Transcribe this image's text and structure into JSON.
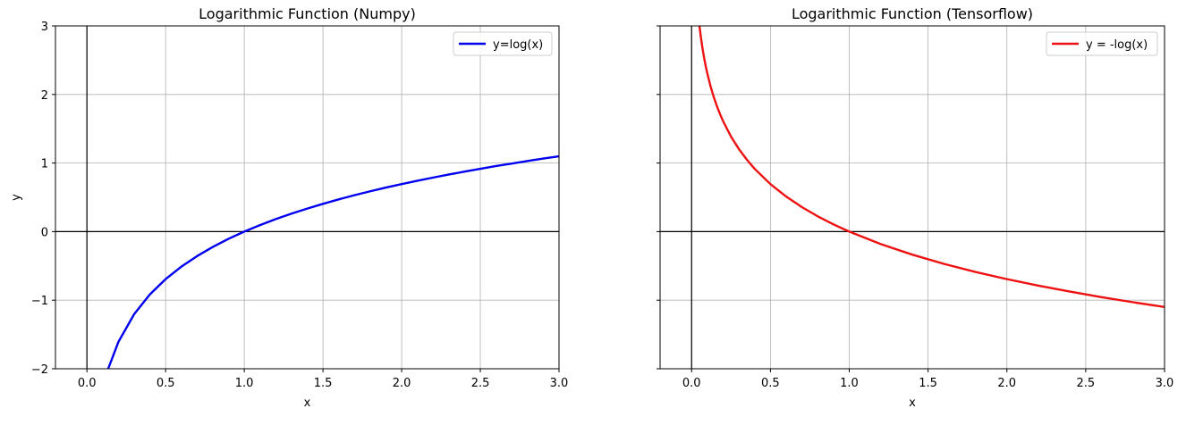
{
  "chart_data": [
    {
      "type": "line",
      "title": "Logarithmic Function (Numpy)",
      "xlabel": "x",
      "ylabel": "y",
      "xlim": [
        -0.2,
        3.0
      ],
      "ylim": [
        -2,
        3
      ],
      "xticks": [
        "0.0",
        "0.5",
        "1.0",
        "1.5",
        "2.0",
        "2.5",
        "3.0"
      ],
      "xtick_values": [
        0,
        0.5,
        1,
        1.5,
        2,
        2.5,
        3
      ],
      "yticks": [
        "−2",
        "−1",
        "0",
        "1",
        "2",
        "3"
      ],
      "ytick_values": [
        -2,
        -1,
        0,
        1,
        2,
        3
      ],
      "show_ytick_labels": true,
      "grid": true,
      "legend": "top-right",
      "reference_lines": [
        "x=0",
        "y=0"
      ],
      "series": [
        {
          "name": "y=log(x)",
          "color": "#0000ee",
          "x": [
            0.135,
            0.2,
            0.3,
            0.4,
            0.5,
            0.6,
            0.7,
            0.8,
            0.9,
            1.0,
            1.1,
            1.2,
            1.3,
            1.4,
            1.5,
            1.6,
            1.7,
            1.8,
            1.9,
            2.0,
            2.1,
            2.2,
            2.3,
            2.4,
            2.5,
            2.6,
            2.7,
            2.8,
            2.9,
            3.0
          ],
          "y": [
            -2.0,
            -1.609,
            -1.204,
            -0.916,
            -0.693,
            -0.511,
            -0.357,
            -0.223,
            -0.105,
            0.0,
            0.095,
            0.182,
            0.262,
            0.336,
            0.405,
            0.47,
            0.531,
            0.588,
            0.642,
            0.693,
            0.742,
            0.788,
            0.833,
            0.875,
            0.916,
            0.956,
            0.993,
            1.03,
            1.065,
            1.099
          ]
        }
      ]
    },
    {
      "type": "line",
      "title": "Logarithmic Function (Tensorflow)",
      "xlabel": "x",
      "ylabel": "",
      "xlim": [
        -0.2,
        3.0
      ],
      "ylim": [
        -2,
        3
      ],
      "xticks": [
        "0.0",
        "0.5",
        "1.0",
        "1.5",
        "2.0",
        "2.5",
        "3.0"
      ],
      "xtick_values": [
        0,
        0.5,
        1,
        1.5,
        2,
        2.5,
        3
      ],
      "yticks": [
        "−2",
        "−1",
        "0",
        "1",
        "2",
        "3"
      ],
      "ytick_values": [
        -2,
        -1,
        0,
        1,
        2,
        3
      ],
      "show_ytick_labels": false,
      "grid": true,
      "legend": "top-right",
      "reference_lines": [
        "x=0",
        "y=0"
      ],
      "series": [
        {
          "name": "y = -log(x)",
          "color": "#ee1111",
          "x": [
            0.05,
            0.06,
            0.07,
            0.08,
            0.09,
            0.1,
            0.12,
            0.14,
            0.16,
            0.18,
            0.2,
            0.25,
            0.3,
            0.35,
            0.4,
            0.5,
            0.6,
            0.7,
            0.8,
            0.9,
            1.0,
            1.2,
            1.4,
            1.6,
            1.8,
            2.0,
            2.2,
            2.4,
            2.6,
            2.8,
            3.0
          ],
          "y": [
            2.996,
            2.813,
            2.659,
            2.526,
            2.408,
            2.303,
            2.12,
            1.966,
            1.833,
            1.715,
            1.609,
            1.386,
            1.204,
            1.05,
            0.916,
            0.693,
            0.511,
            0.357,
            0.223,
            0.105,
            0.0,
            -0.182,
            -0.336,
            -0.47,
            -0.588,
            -0.693,
            -0.788,
            -0.875,
            -0.956,
            -1.03,
            -1.099
          ]
        }
      ]
    }
  ]
}
